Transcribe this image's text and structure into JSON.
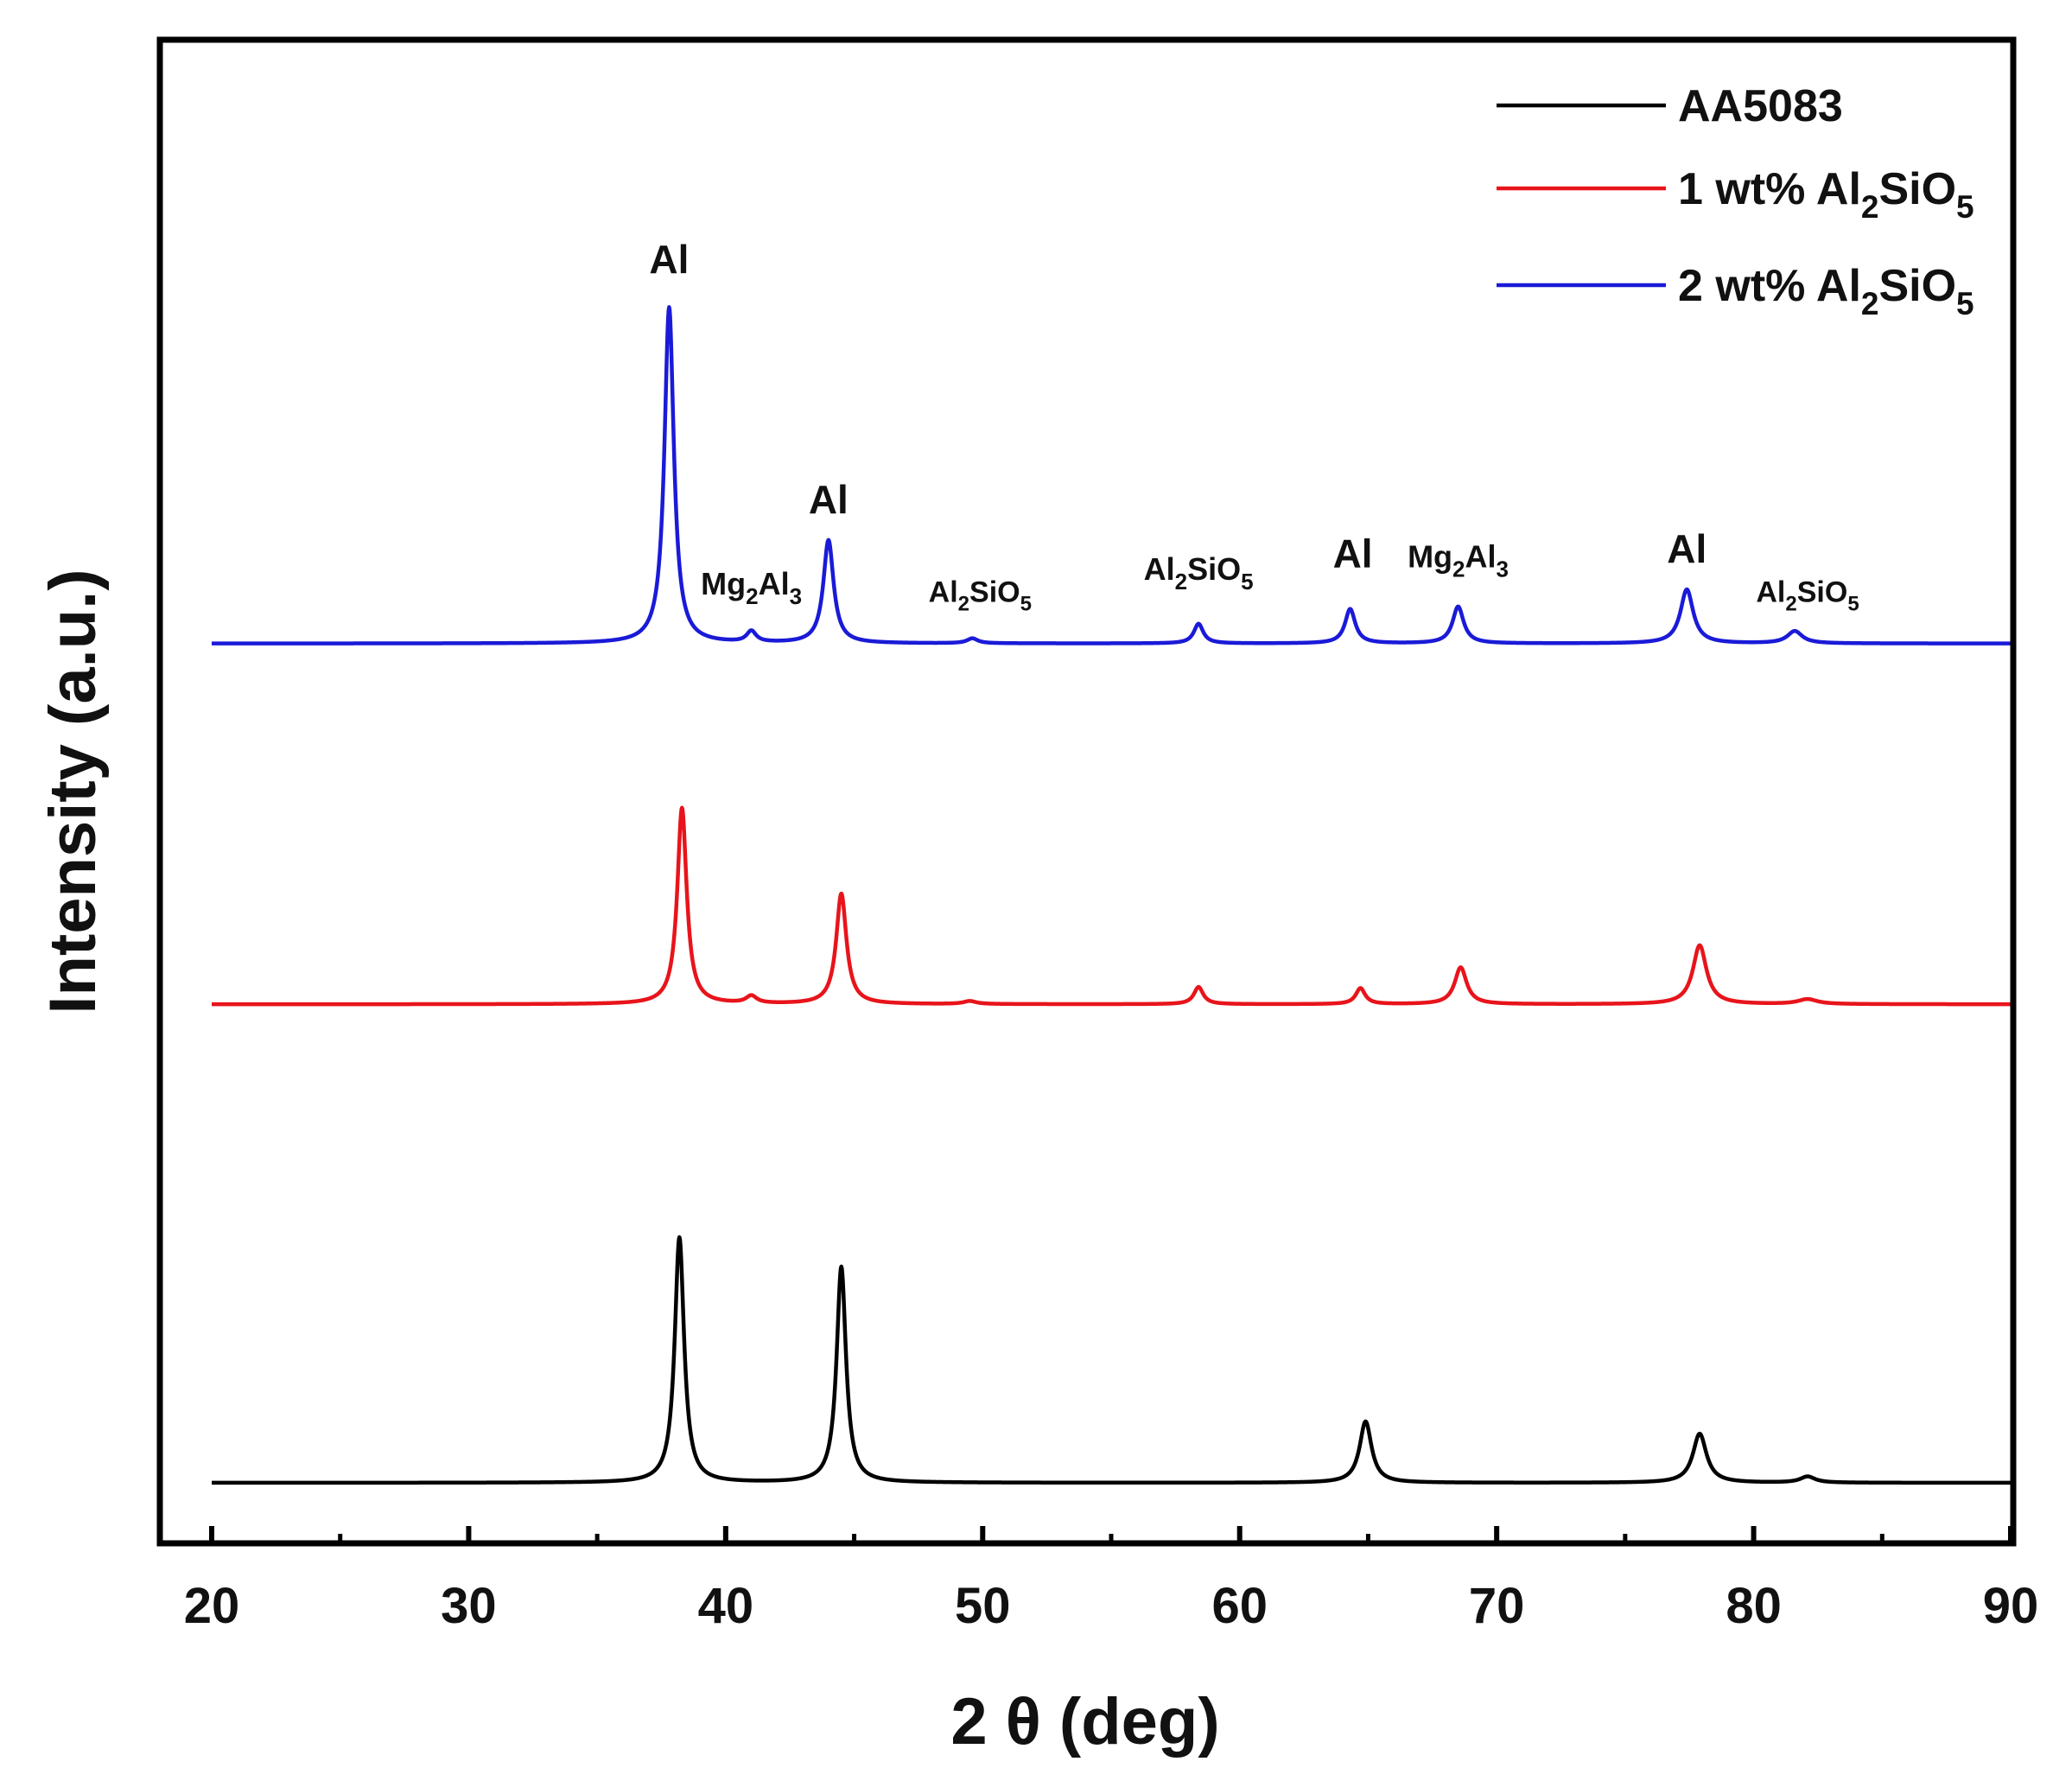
{
  "chart_data": {
    "type": "line",
    "xlabel": "2 θ (deg)",
    "ylabel": "Intensity (a.u.)",
    "xlim": [
      20,
      90
    ],
    "x_ticks": [
      20,
      30,
      40,
      50,
      60,
      70,
      80,
      90
    ],
    "y_ticks_shown": false,
    "y_unit": "arbitrary units",
    "grid": false,
    "legend_position": "top-right",
    "colors": {
      "AA5083": "#000000",
      "1 wt% Al2SiO5": "#e8141b",
      "2 wt% Al2SiO5": "#1a1ad8"
    },
    "series": [
      {
        "name": "AA5083",
        "legend": {
          "text": "AA5083",
          "sub1": "",
          "mid": "",
          "sub2": ""
        },
        "color": "#000000",
        "baseline": 0,
        "peaks": [
          {
            "x": 38.2,
            "height": 100,
            "width": 0.22
          },
          {
            "x": 44.5,
            "height": 88,
            "width": 0.22
          },
          {
            "x": 64.9,
            "height": 25,
            "width": 0.28
          },
          {
            "x": 77.9,
            "height": 20,
            "width": 0.32
          },
          {
            "x": 82.1,
            "height": 2.5,
            "width": 0.35
          }
        ]
      },
      {
        "name": "1 wt% Al2SiO5",
        "legend": {
          "text": "1 wt% Al",
          "sub1": "2",
          "mid": "SiO",
          "sub2": "5"
        },
        "color": "#e8141b",
        "baseline": 195,
        "peaks": [
          {
            "x": 38.3,
            "height": 80,
            "width": 0.22
          },
          {
            "x": 41.0,
            "height": 3,
            "width": 0.25
          },
          {
            "x": 44.5,
            "height": 45,
            "width": 0.24
          },
          {
            "x": 49.5,
            "height": 1.2,
            "width": 0.3
          },
          {
            "x": 58.4,
            "height": 7,
            "width": 0.22
          },
          {
            "x": 64.7,
            "height": 6.5,
            "width": 0.22
          },
          {
            "x": 68.6,
            "height": 15,
            "width": 0.28
          },
          {
            "x": 77.9,
            "height": 24,
            "width": 0.32
          },
          {
            "x": 82.1,
            "height": 2,
            "width": 0.45
          }
        ]
      },
      {
        "name": "2 wt% Al2SiO5",
        "legend": {
          "text": "2 wt% Al",
          "sub1": "2",
          "mid": "SiO",
          "sub2": "5"
        },
        "color": "#1a1ad8",
        "baseline": 342,
        "peaks": [
          {
            "x": 37.8,
            "height": 137,
            "width": 0.22
          },
          {
            "x": 41.0,
            "height": 4.5,
            "width": 0.22
          },
          {
            "x": 44.0,
            "height": 42,
            "width": 0.24
          },
          {
            "x": 49.6,
            "height": 2,
            "width": 0.25
          },
          {
            "x": 58.4,
            "height": 8,
            "width": 0.22
          },
          {
            "x": 64.3,
            "height": 14,
            "width": 0.24
          },
          {
            "x": 68.5,
            "height": 15,
            "width": 0.26
          },
          {
            "x": 77.4,
            "height": 22,
            "width": 0.3
          },
          {
            "x": 81.6,
            "height": 5,
            "width": 0.35
          }
        ]
      }
    ],
    "peak_annotations": [
      {
        "name": "ann-al-38",
        "x": 37.8,
        "y": 493,
        "main": "Al",
        "sub1": "",
        "mid": "",
        "sub2": "",
        "size": 46
      },
      {
        "name": "ann-mg2al3-41",
        "x": 41.0,
        "y": 362,
        "main": "Mg",
        "sub1": "2",
        "mid": "Al",
        "sub2": "3",
        "size": 36
      },
      {
        "name": "ann-al-44",
        "x": 44.0,
        "y": 395,
        "main": "Al",
        "sub1": "",
        "mid": "",
        "sub2": "",
        "size": 46
      },
      {
        "name": "ann-al2sio5-49",
        "x": 49.9,
        "y": 359,
        "main": "Al",
        "sub1": "2",
        "mid": "SiO",
        "sub2": "5",
        "size": 34
      },
      {
        "name": "ann-al2sio5-58",
        "x": 58.4,
        "y": 368,
        "main": "Al",
        "sub1": "2",
        "mid": "SiO",
        "sub2": "5",
        "size": 36
      },
      {
        "name": "ann-al-64",
        "x": 64.4,
        "y": 373,
        "main": "Al",
        "sub1": "",
        "mid": "",
        "sub2": "",
        "size": 46
      },
      {
        "name": "ann-mg2al3-68",
        "x": 68.5,
        "y": 373,
        "main": "Mg",
        "sub1": "2",
        "mid": "Al",
        "sub2": "3",
        "size": 36
      },
      {
        "name": "ann-al-77",
        "x": 77.4,
        "y": 375,
        "main": "Al",
        "sub1": "",
        "mid": "",
        "sub2": "",
        "size": 46
      },
      {
        "name": "ann-al2sio5-82",
        "x": 82.1,
        "y": 359,
        "main": "Al",
        "sub1": "2",
        "mid": "SiO",
        "sub2": "5",
        "size": 34
      }
    ]
  }
}
